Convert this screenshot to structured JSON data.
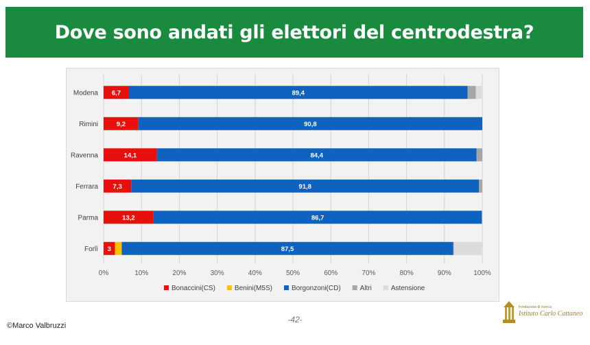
{
  "header": {
    "title": "Dove sono andati gli elettori del centrodestra?"
  },
  "footer": {
    "page": "-42-",
    "copyright": "©Marco Valbruzzi",
    "logo_line1": "Fondazione di ricerca",
    "logo_line2": "Istituto Carlo Cattaneo"
  },
  "colors": {
    "banner": "#1a8a3e",
    "Bonaccini(CS)": "#e8100d",
    "Benini(M5S)": "#ffc000",
    "Borgonzoni(CD)": "#0f62be",
    "Altri": "#a6a6a6",
    "Astensione": "#dcdcdc"
  },
  "chart_data": {
    "type": "bar",
    "orientation": "horizontal",
    "stacked": true,
    "categories": [
      "Modena",
      "Rimini",
      "Ravenna",
      "Ferrara",
      "Parma",
      "Forlì"
    ],
    "series": [
      {
        "name": "Bonaccini(CS)",
        "values": [
          6.7,
          9.2,
          14.1,
          7.3,
          13.2,
          3.0
        ],
        "labels": [
          "6,7",
          "9,2",
          "14,1",
          "7,3",
          "13,2",
          "3"
        ]
      },
      {
        "name": "Benini(M5S)",
        "values": [
          0,
          0,
          0,
          0,
          0,
          1.8
        ],
        "labels": [
          "",
          "",
          "",
          "",
          "",
          ""
        ]
      },
      {
        "name": "Borgonzoni(CD)",
        "values": [
          89.4,
          90.8,
          84.4,
          91.8,
          86.7,
          87.5
        ],
        "labels": [
          "89,4",
          "90,8",
          "84,4",
          "91,8",
          "86,7",
          "87,5"
        ]
      },
      {
        "name": "Altri",
        "values": [
          2.2,
          0,
          1.5,
          0.9,
          0,
          0.2
        ],
        "labels": [
          "",
          "",
          "",
          "",
          "",
          ""
        ]
      },
      {
        "name": "Astensione",
        "values": [
          1.7,
          0,
          0,
          0,
          0.1,
          7.5
        ],
        "labels": [
          "",
          "",
          "",
          "",
          "",
          ""
        ]
      }
    ],
    "x_ticks": [
      "0%",
      "10%",
      "20%",
      "30%",
      "40%",
      "50%",
      "60%",
      "70%",
      "80%",
      "90%",
      "100%"
    ],
    "xlim": [
      0,
      100
    ],
    "grid": true,
    "legend_position": "bottom"
  }
}
